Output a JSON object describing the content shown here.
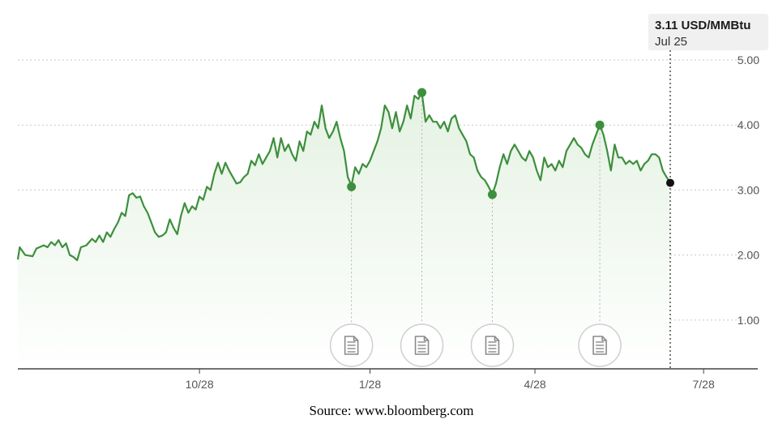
{
  "colors": {
    "line": "#3d8f3d",
    "area_top": "#e4f2e2",
    "grid": "#c8c8c8",
    "axis": "#444444",
    "tooltip_bg": "#f0f0f0",
    "current_point": "#111111",
    "event_circle": "#cfcfcf",
    "event_icon": "#8a8a8a"
  },
  "tooltip": {
    "value": "3.11 USD/MMBtu",
    "date": "Jul 25"
  },
  "source": "Source: www.bloomberg.com",
  "icons": {
    "event_marker": "document-icon"
  },
  "chart_data": {
    "type": "area",
    "y_ticks": [
      "5.00",
      "4.00",
      "3.00",
      "2.00",
      "1.00"
    ],
    "y_tick_values": [
      5,
      4,
      3,
      2,
      1
    ],
    "ylim": [
      0.25,
      5.0
    ],
    "x_ticks": [
      "10/28",
      "1/28",
      "4/28",
      "7/28"
    ],
    "x_tick_positions": [
      98,
      190,
      279,
      370
    ],
    "xlim": [
      0,
      373
    ],
    "grid": "horizontal dashed",
    "series": [
      {
        "points": [
          [
            0,
            1.93
          ],
          [
            1,
            2.12
          ],
          [
            4,
            2.0
          ],
          [
            8,
            1.98
          ],
          [
            10,
            2.1
          ],
          [
            14,
            2.15
          ],
          [
            16,
            2.12
          ],
          [
            18,
            2.2
          ],
          [
            20,
            2.15
          ],
          [
            22,
            2.23
          ],
          [
            24,
            2.12
          ],
          [
            26,
            2.18
          ],
          [
            28,
            2.0
          ],
          [
            30,
            1.97
          ],
          [
            32,
            1.92
          ],
          [
            34,
            2.12
          ],
          [
            37,
            2.15
          ],
          [
            40,
            2.25
          ],
          [
            42,
            2.2
          ],
          [
            44,
            2.3
          ],
          [
            46,
            2.2
          ],
          [
            48,
            2.35
          ],
          [
            50,
            2.28
          ],
          [
            52,
            2.4
          ],
          [
            54,
            2.5
          ],
          [
            56,
            2.65
          ],
          [
            58,
            2.6
          ],
          [
            60,
            2.92
          ],
          [
            62,
            2.95
          ],
          [
            64,
            2.88
          ],
          [
            66,
            2.9
          ],
          [
            68,
            2.75
          ],
          [
            70,
            2.65
          ],
          [
            72,
            2.5
          ],
          [
            74,
            2.35
          ],
          [
            76,
            2.28
          ],
          [
            78,
            2.3
          ],
          [
            80,
            2.35
          ],
          [
            82,
            2.55
          ],
          [
            84,
            2.42
          ],
          [
            86,
            2.32
          ],
          [
            88,
            2.6
          ],
          [
            90,
            2.8
          ],
          [
            92,
            2.65
          ],
          [
            94,
            2.75
          ],
          [
            96,
            2.7
          ],
          [
            98,
            2.9
          ],
          [
            100,
            2.85
          ],
          [
            102,
            3.05
          ],
          [
            104,
            3.0
          ],
          [
            106,
            3.25
          ],
          [
            108,
            3.42
          ],
          [
            110,
            3.25
          ],
          [
            112,
            3.42
          ],
          [
            114,
            3.3
          ],
          [
            116,
            3.2
          ],
          [
            118,
            3.1
          ],
          [
            120,
            3.12
          ],
          [
            122,
            3.2
          ],
          [
            124,
            3.25
          ],
          [
            126,
            3.45
          ],
          [
            128,
            3.38
          ],
          [
            130,
            3.55
          ],
          [
            132,
            3.4
          ],
          [
            134,
            3.5
          ],
          [
            136,
            3.6
          ],
          [
            138,
            3.8
          ],
          [
            140,
            3.5
          ],
          [
            142,
            3.8
          ],
          [
            144,
            3.6
          ],
          [
            146,
            3.7
          ],
          [
            148,
            3.55
          ],
          [
            150,
            3.45
          ],
          [
            152,
            3.75
          ],
          [
            154,
            3.6
          ],
          [
            156,
            3.9
          ],
          [
            158,
            3.85
          ],
          [
            160,
            4.05
          ],
          [
            162,
            3.95
          ],
          [
            164,
            4.3
          ],
          [
            166,
            3.95
          ],
          [
            168,
            3.8
          ],
          [
            170,
            3.9
          ],
          [
            172,
            4.05
          ],
          [
            174,
            3.8
          ],
          [
            176,
            3.6
          ],
          [
            178,
            3.2
          ],
          [
            180,
            3.07
          ],
          [
            182,
            3.35
          ],
          [
            184,
            3.25
          ],
          [
            186,
            3.4
          ],
          [
            188,
            3.35
          ],
          [
            190,
            3.45
          ],
          [
            192,
            3.6
          ],
          [
            194,
            3.75
          ],
          [
            196,
            3.95
          ],
          [
            198,
            4.3
          ],
          [
            200,
            4.2
          ],
          [
            202,
            3.95
          ],
          [
            204,
            4.2
          ],
          [
            206,
            3.9
          ],
          [
            208,
            4.05
          ],
          [
            210,
            4.3
          ],
          [
            212,
            4.1
          ],
          [
            214,
            4.45
          ],
          [
            216,
            4.4
          ],
          [
            218,
            4.5
          ],
          [
            220,
            4.05
          ],
          [
            222,
            4.15
          ],
          [
            224,
            4.05
          ],
          [
            226,
            4.05
          ],
          [
            228,
            3.95
          ],
          [
            230,
            4.05
          ],
          [
            232,
            3.9
          ],
          [
            234,
            4.1
          ],
          [
            236,
            4.15
          ],
          [
            238,
            3.95
          ],
          [
            240,
            3.85
          ],
          [
            242,
            3.75
          ],
          [
            244,
            3.55
          ],
          [
            246,
            3.5
          ],
          [
            248,
            3.3
          ],
          [
            250,
            3.2
          ],
          [
            252,
            3.15
          ],
          [
            254,
            3.05
          ],
          [
            256,
            2.93
          ],
          [
            258,
            3.1
          ],
          [
            260,
            3.35
          ],
          [
            262,
            3.55
          ],
          [
            264,
            3.4
          ],
          [
            266,
            3.6
          ],
          [
            268,
            3.7
          ],
          [
            270,
            3.6
          ],
          [
            272,
            3.5
          ],
          [
            274,
            3.45
          ],
          [
            276,
            3.6
          ],
          [
            278,
            3.5
          ],
          [
            280,
            3.3
          ],
          [
            282,
            3.15
          ],
          [
            284,
            3.5
          ],
          [
            286,
            3.35
          ],
          [
            288,
            3.4
          ],
          [
            290,
            3.3
          ],
          [
            292,
            3.45
          ],
          [
            294,
            3.35
          ],
          [
            296,
            3.6
          ],
          [
            298,
            3.7
          ],
          [
            300,
            3.8
          ],
          [
            302,
            3.7
          ],
          [
            304,
            3.65
          ],
          [
            306,
            3.55
          ],
          [
            308,
            3.5
          ],
          [
            310,
            3.7
          ],
          [
            312,
            3.85
          ],
          [
            314,
            4.0
          ],
          [
            316,
            3.85
          ],
          [
            318,
            3.6
          ],
          [
            320,
            3.3
          ],
          [
            322,
            3.7
          ],
          [
            324,
            3.5
          ],
          [
            326,
            3.5
          ],
          [
            328,
            3.4
          ],
          [
            330,
            3.45
          ],
          [
            332,
            3.4
          ],
          [
            334,
            3.45
          ],
          [
            336,
            3.3
          ],
          [
            338,
            3.4
          ],
          [
            340,
            3.45
          ],
          [
            342,
            3.55
          ],
          [
            344,
            3.55
          ],
          [
            346,
            3.5
          ],
          [
            348,
            3.3
          ],
          [
            350,
            3.2
          ],
          [
            352,
            3.11
          ]
        ]
      }
    ],
    "markers": [
      {
        "x": 180,
        "y": 3.05
      },
      {
        "x": 218,
        "y": 4.5
      },
      {
        "x": 256,
        "y": 2.93
      },
      {
        "x": 314,
        "y": 4.0
      }
    ],
    "current_point": {
      "x": 352,
      "y": 3.11
    }
  }
}
